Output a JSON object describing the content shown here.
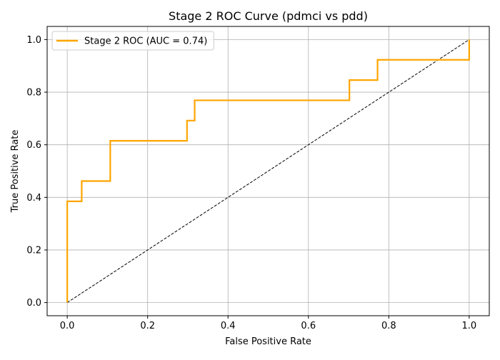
{
  "chart_data": {
    "type": "line",
    "title": "Stage 2 ROC Curve (pdmci vs pdd)",
    "xlabel": "False Positive Rate",
    "ylabel": "True Positive Rate",
    "xlim": [
      -0.05,
      1.05
    ],
    "ylim": [
      -0.05,
      1.05
    ],
    "xticks": [
      "0.0",
      "0.2",
      "0.4",
      "0.6",
      "0.8",
      "1.0"
    ],
    "yticks": [
      "0.0",
      "0.2",
      "0.4",
      "0.6",
      "0.8",
      "1.0"
    ],
    "grid": true,
    "legend_position": "top-left",
    "series": [
      {
        "name": "Stage 2 ROC (AUC = 0.74)",
        "color": "#ffa500",
        "style": "solid",
        "x": [
          0.0,
          0.0,
          0.036,
          0.036,
          0.107,
          0.107,
          0.298,
          0.298,
          0.317,
          0.317,
          0.702,
          0.702,
          0.772,
          0.772,
          1.0,
          1.0
        ],
        "y": [
          0.0,
          0.385,
          0.385,
          0.462,
          0.462,
          0.615,
          0.615,
          0.692,
          0.692,
          0.769,
          0.769,
          0.846,
          0.846,
          0.923,
          0.923,
          1.0
        ]
      },
      {
        "color": "#000000",
        "style": "dashed",
        "x": [
          0.0,
          1.0
        ],
        "y": [
          0.0,
          1.0
        ]
      }
    ]
  }
}
